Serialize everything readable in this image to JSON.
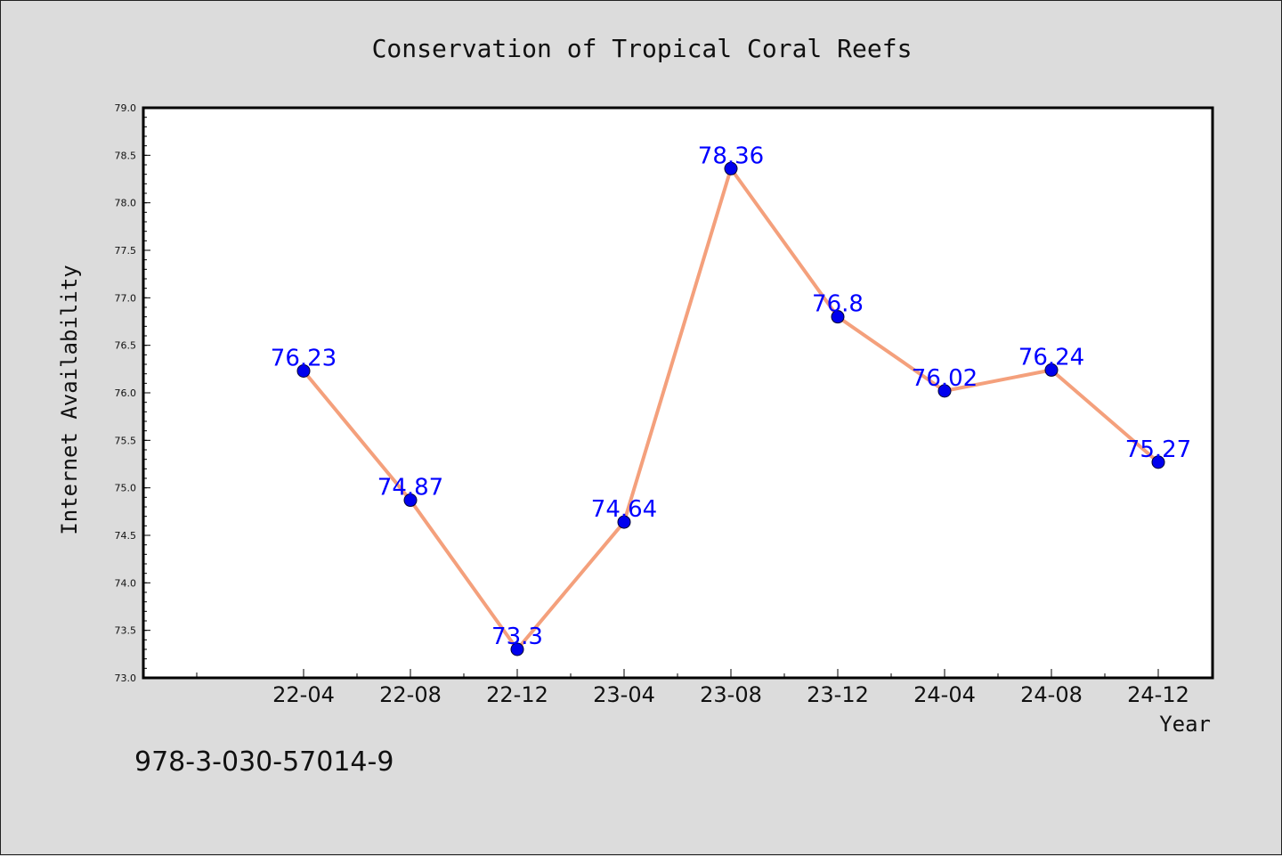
{
  "chart_data": {
    "type": "line",
    "title": "Conservation of Tropical Coral Reefs",
    "xlabel": "Year",
    "ylabel": "Internet Availability",
    "categories": [
      "22-04",
      "22-08",
      "22-12",
      "23-04",
      "23-08",
      "23-12",
      "24-04",
      "24-08",
      "24-12"
    ],
    "series": [
      {
        "values": [
          76.23,
          74.87,
          73.3,
          74.64,
          78.36,
          76.8,
          76.02,
          76.24,
          75.27
        ],
        "labels": [
          "76.23",
          "74.87",
          "73.3",
          "74.64",
          "78.36",
          "76.8",
          "76.02",
          "76.24",
          "75.27"
        ],
        "line_color": "#f4a07c",
        "marker_color": "#0000ee",
        "label_color": "#0000ff"
      }
    ],
    "ylim": [
      73.0,
      79.0
    ],
    "yticks": [
      "73.0",
      "73.5",
      "74.0",
      "74.5",
      "75.0",
      "75.5",
      "76.0",
      "76.5",
      "77.0",
      "77.5",
      "78.0",
      "78.5",
      "79.0"
    ],
    "grid": false,
    "legend": "none"
  },
  "footer_code": "978-3-030-57014-9",
  "colors": {
    "background": "#dcdcdc",
    "plot_background": "#ffffff"
  }
}
